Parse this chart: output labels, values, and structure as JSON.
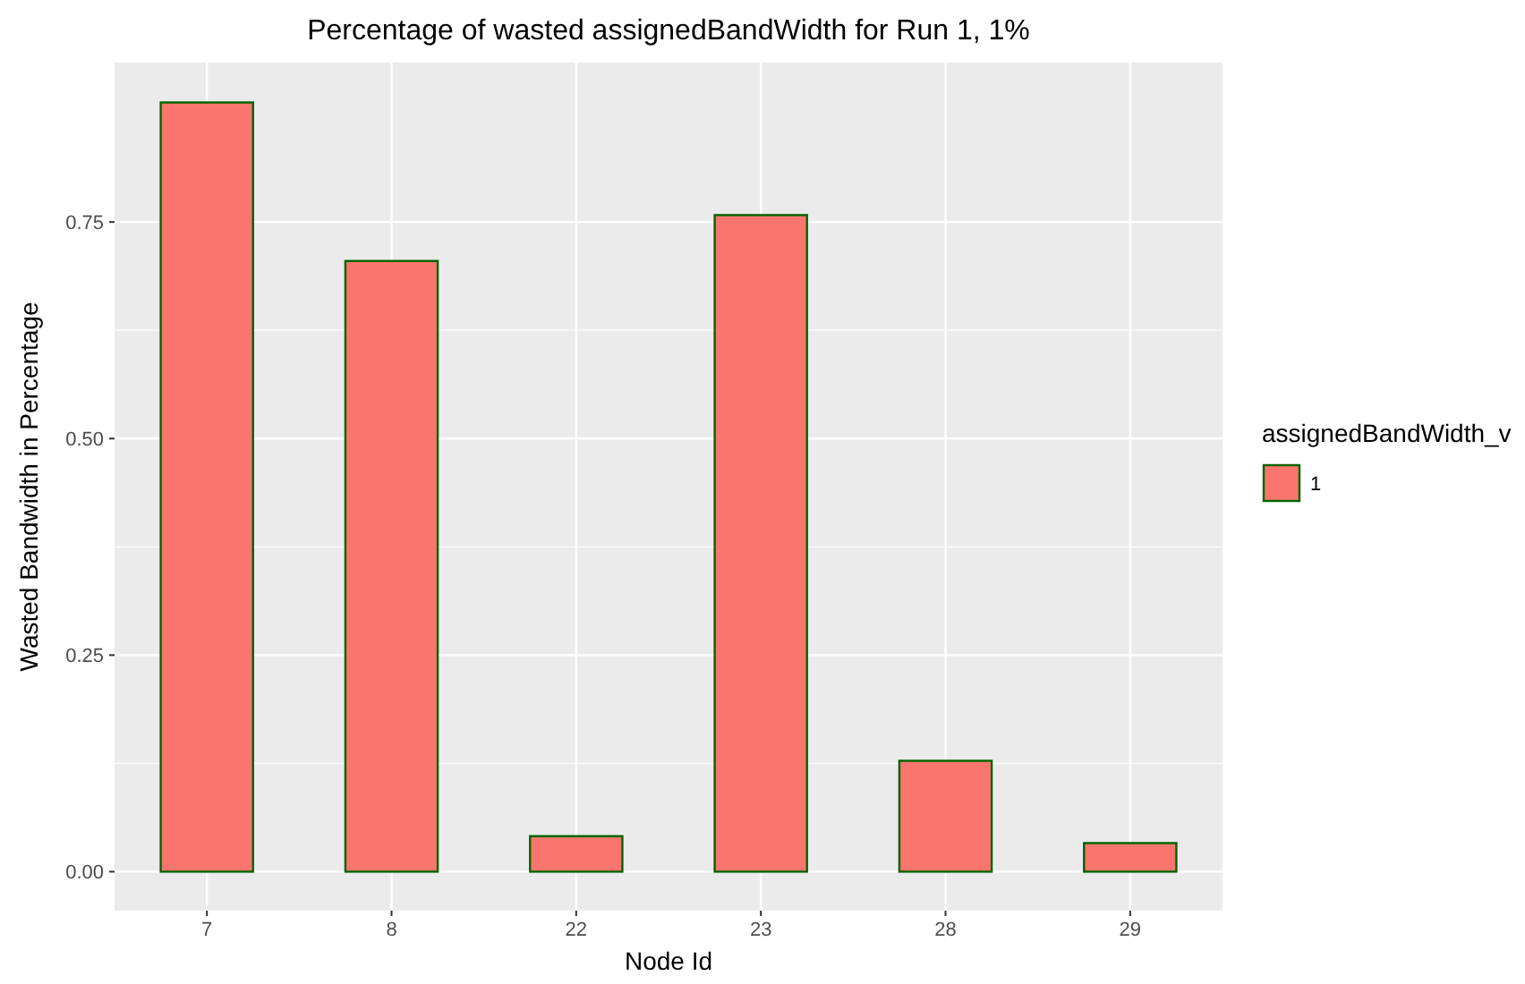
{
  "chart_data": {
    "type": "bar",
    "title": "Percentage of wasted assignedBandWidth for Run 1, 1%",
    "xlabel": "Node Id",
    "ylabel": "Wasted Bandwidth in Percentage",
    "legend_title": "assignedBandWidth_v",
    "categories": [
      "7",
      "8",
      "22",
      "23",
      "28",
      "29"
    ],
    "series": [
      {
        "name": "1",
        "color": "#f8766d",
        "values": [
          0.888,
          0.705,
          0.041,
          0.758,
          0.128,
          0.033
        ]
      }
    ],
    "ylim": [
      -0.045,
      0.934
    ],
    "yticks": [
      {
        "value": 0,
        "label": "0.00"
      },
      {
        "value": 0.25,
        "label": "0.25"
      },
      {
        "value": 0.5,
        "label": "0.50"
      },
      {
        "value": 0.75,
        "label": "0.75"
      }
    ],
    "grid": true,
    "legend": "right"
  }
}
